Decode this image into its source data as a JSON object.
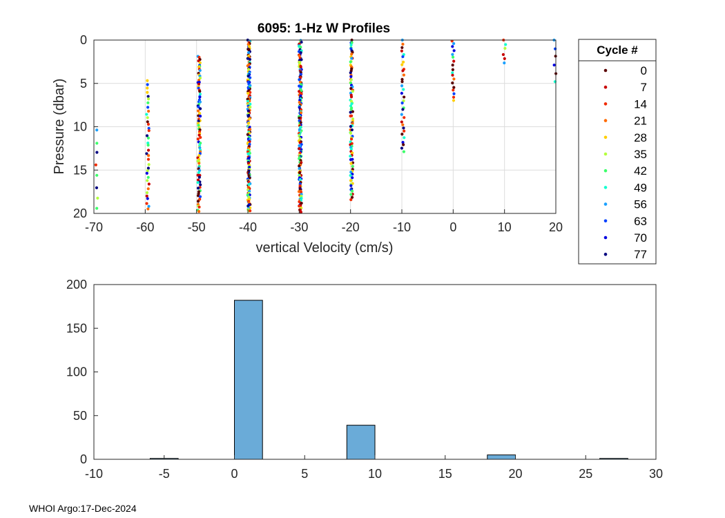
{
  "footer": {
    "text": "WHOI Argo:17-Dec-2024"
  },
  "colors": {
    "axis": "#262626",
    "grid": "#dcdcdc",
    "bar_fill": "#6aabd8",
    "bar_edge": "#000000"
  },
  "chart_data": [
    {
      "type": "scatter",
      "title": "6095: 1-Hz W Profiles",
      "xlabel": "vertical Velocity (cm/s)",
      "ylabel": "Pressure (dbar)",
      "xlim": [
        -70,
        20
      ],
      "ylim": [
        0,
        20
      ],
      "y_reversed": true,
      "grid": true,
      "xticks": [
        -70,
        -60,
        -50,
        -40,
        -30,
        -20,
        -10,
        0,
        10,
        20
      ],
      "yticks": [
        0,
        5,
        10,
        15,
        20
      ],
      "legend": {
        "title": "Cycle #",
        "placement": "outside-right",
        "entries": [
          "0",
          "7",
          "14",
          "21",
          "28",
          "35",
          "42",
          "49",
          "56",
          "63",
          "70",
          "77"
        ],
        "colors": [
          "#5a0000",
          "#c80000",
          "#f02a00",
          "#ff6a00",
          "#ffcf00",
          "#b4ff3c",
          "#3cff6a",
          "#14ffd0",
          "#1aa0ff",
          "#0040ff",
          "#0000e0",
          "#000080"
        ]
      },
      "columns": [
        {
          "x": -69.5,
          "pressure_range": [
            10.5,
            19.5
          ],
          "density": "sparse"
        },
        {
          "x": -59.5,
          "pressure_range": [
            4.8,
            19.6
          ],
          "density": "medium"
        },
        {
          "x": -49.5,
          "pressure_range": [
            1.8,
            19.7
          ],
          "density": "dense"
        },
        {
          "x": -39.8,
          "pressure_range": [
            0.0,
            19.8
          ],
          "density": "very dense"
        },
        {
          "x": -29.8,
          "pressure_range": [
            0.0,
            19.8
          ],
          "density": "very dense"
        },
        {
          "x": -19.8,
          "pressure_range": [
            0.0,
            18.3
          ],
          "density": "dense"
        },
        {
          "x": -9.8,
          "pressure_range": [
            0.0,
            13.0
          ],
          "density": "medium"
        },
        {
          "x": 0.0,
          "pressure_range": [
            0.0,
            7.0
          ],
          "density": "medium"
        },
        {
          "x": 10.0,
          "pressure_range": [
            0.0,
            2.6
          ],
          "density": "sparse"
        },
        {
          "x": 19.8,
          "pressure_range": [
            0.0,
            4.9
          ],
          "density": "sparse"
        }
      ]
    },
    {
      "type": "bar",
      "title": "",
      "xlabel": "",
      "ylabel": "",
      "xlim": [
        -10,
        30
      ],
      "ylim": [
        0,
        200
      ],
      "grid": false,
      "xticks": [
        -10,
        -5,
        0,
        5,
        10,
        15,
        20,
        25,
        30
      ],
      "yticks": [
        0,
        50,
        100,
        150,
        200
      ],
      "bin_width": 2,
      "bins": [
        {
          "start": -10,
          "value": 0
        },
        {
          "start": -8,
          "value": 0
        },
        {
          "start": -6,
          "value": 1
        },
        {
          "start": -4,
          "value": 0
        },
        {
          "start": -2,
          "value": 0
        },
        {
          "start": 0,
          "value": 182
        },
        {
          "start": 2,
          "value": 0
        },
        {
          "start": 4,
          "value": 0
        },
        {
          "start": 6,
          "value": 0
        },
        {
          "start": 8,
          "value": 39
        },
        {
          "start": 10,
          "value": 0
        },
        {
          "start": 12,
          "value": 0
        },
        {
          "start": 14,
          "value": 0
        },
        {
          "start": 16,
          "value": 0
        },
        {
          "start": 18,
          "value": 5
        },
        {
          "start": 20,
          "value": 0
        },
        {
          "start": 22,
          "value": 0
        },
        {
          "start": 24,
          "value": 0
        },
        {
          "start": 26,
          "value": 1
        },
        {
          "start": 28,
          "value": 0
        }
      ]
    }
  ]
}
